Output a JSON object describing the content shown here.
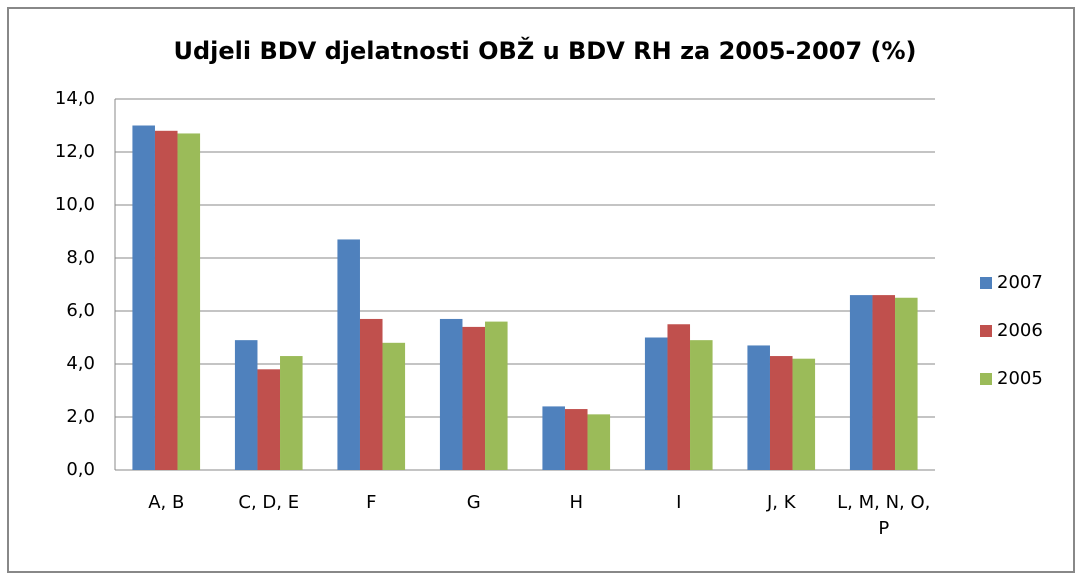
{
  "chart_data": {
    "type": "bar",
    "title": "Udjeli BDV djelatnosti OBŽ u BDV  RH za 2005-2007 (%)",
    "categories": [
      "A, B",
      "C, D, E",
      "F",
      "G",
      "H",
      "I",
      "J, K",
      "L, M, N, O, P"
    ],
    "series": [
      {
        "name": "2007",
        "color": "#4f81bd",
        "values": [
          13.0,
          4.9,
          8.7,
          5.7,
          2.4,
          5.0,
          4.7,
          6.6
        ]
      },
      {
        "name": "2006",
        "color": "#c0504d",
        "values": [
          12.8,
          3.8,
          5.7,
          5.4,
          2.3,
          5.5,
          4.3,
          6.6
        ]
      },
      {
        "name": "2005",
        "color": "#9bbb59",
        "values": [
          12.7,
          4.3,
          4.8,
          5.6,
          2.1,
          4.9,
          4.2,
          6.5
        ]
      }
    ],
    "ylim": [
      0,
      14
    ],
    "yticks": [
      {
        "value": 0,
        "label": "0,0"
      },
      {
        "value": 2,
        "label": "2,0"
      },
      {
        "value": 4,
        "label": "4,0"
      },
      {
        "value": 6,
        "label": "6,0"
      },
      {
        "value": 8,
        "label": "8,0"
      },
      {
        "value": 10,
        "label": "10,0"
      },
      {
        "value": 12,
        "label": "12,0"
      },
      {
        "value": 14,
        "label": "14,0"
      }
    ],
    "grid": true,
    "legend": "right"
  }
}
